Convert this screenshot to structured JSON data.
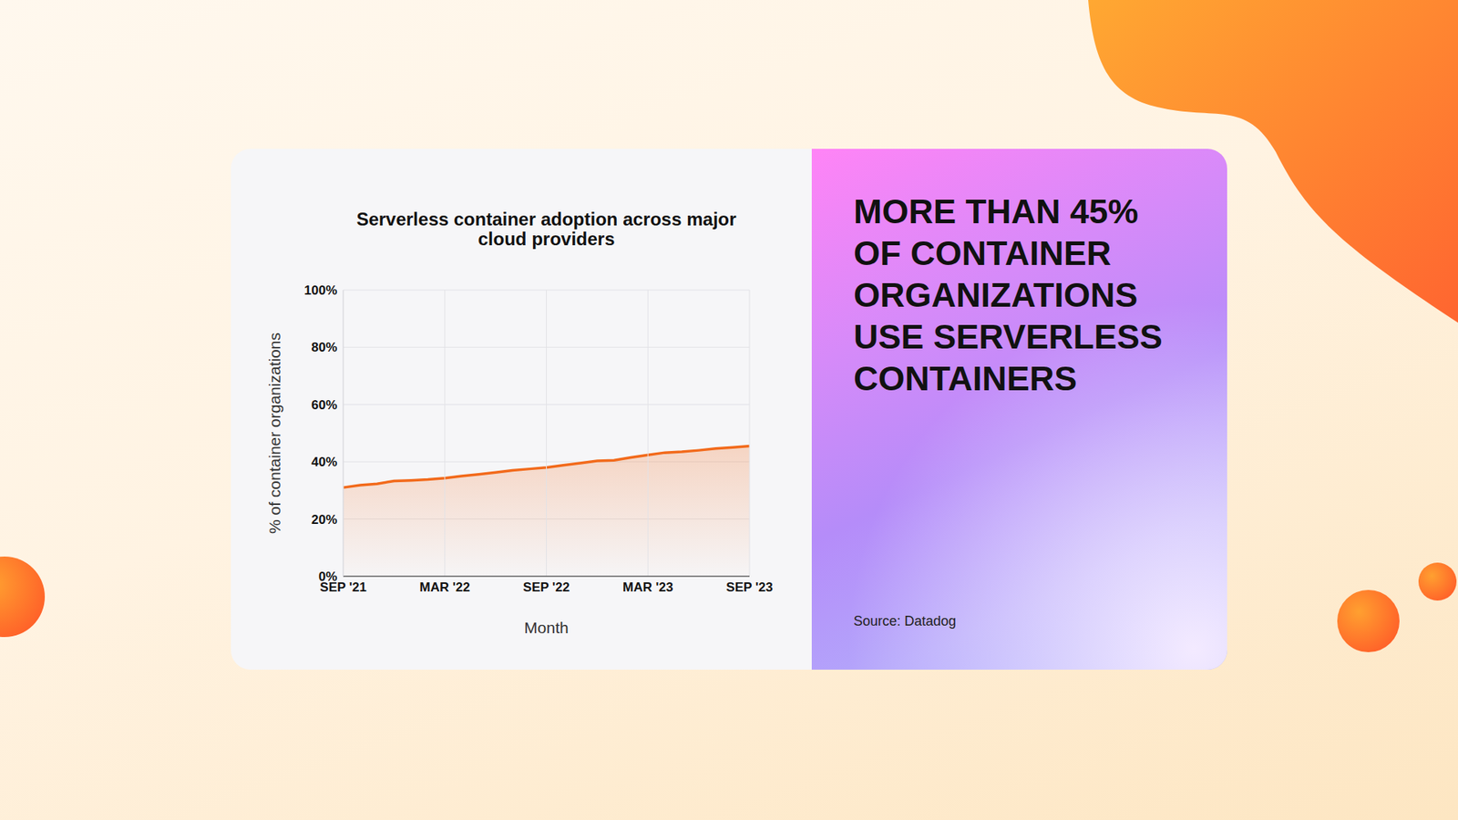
{
  "chart_data": {
    "type": "area",
    "title": "Serverless container adoption across major cloud providers",
    "xlabel": "Month",
    "ylabel": "% of container organizations",
    "categories": [
      "SEP '21",
      null,
      null,
      null,
      null,
      null,
      "MAR '22",
      null,
      null,
      null,
      null,
      null,
      "SEP '22",
      null,
      null,
      null,
      null,
      null,
      "MAR '23",
      null,
      null,
      null,
      null,
      null,
      "SEP '23"
    ],
    "series": [
      {
        "name": "Serverless container adoption",
        "color": "#f26a1b",
        "values": [
          31,
          31.8,
          32.3,
          33.3,
          33.5,
          33.8,
          34.3,
          35,
          35.6,
          36.3,
          37,
          37.5,
          38,
          38.8,
          39.5,
          40.3,
          40.5,
          41.5,
          42.4,
          43.2,
          43.5,
          44,
          44.6,
          45,
          45.5
        ]
      }
    ],
    "ylim": [
      0,
      100
    ],
    "yticks": [
      {
        "value": 0,
        "label": "0%"
      },
      {
        "value": 20,
        "label": "20%"
      },
      {
        "value": 40,
        "label": "40%"
      },
      {
        "value": 60,
        "label": "60%"
      },
      {
        "value": 80,
        "label": "80%"
      },
      {
        "value": 100,
        "label": "100%"
      }
    ],
    "grid": true
  },
  "headline": "MORE THAN 45% OF CONTAINER ORGANIZATIONS USE SERVERLESS CONTAINERS",
  "source": "Source: Datadog"
}
